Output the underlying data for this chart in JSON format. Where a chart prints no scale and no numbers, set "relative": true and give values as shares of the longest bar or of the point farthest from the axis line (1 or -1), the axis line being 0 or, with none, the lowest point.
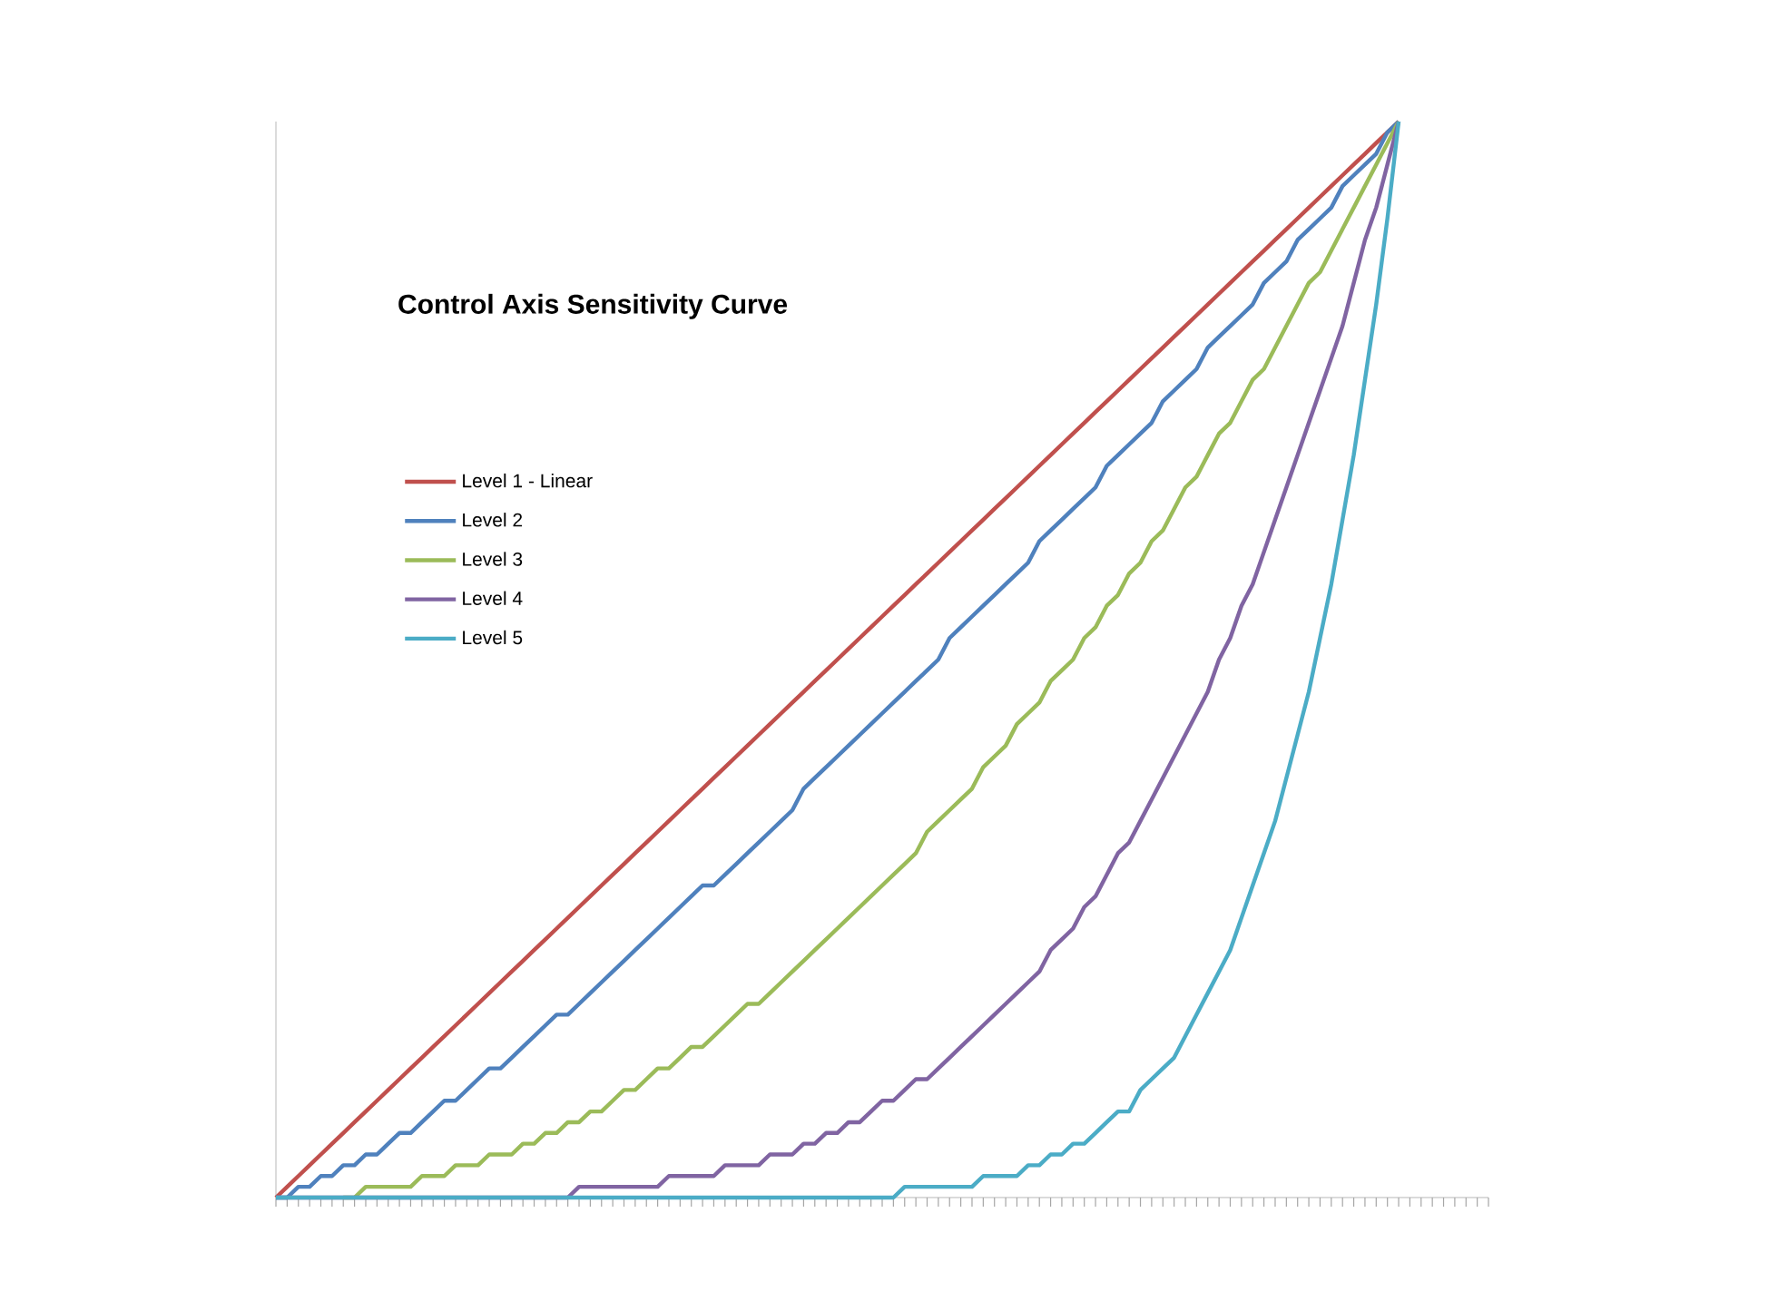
{
  "chart_data": {
    "type": "line",
    "title": "Control Axis Sensitivity Curve",
    "relative": true,
    "legend": "top left",
    "marker": "none",
    "line_style": "solid",
    "grid": false,
    "categories": [
      null,
      null,
      null,
      null,
      null,
      null,
      null,
      null,
      null,
      null,
      null,
      null,
      null,
      null,
      null,
      null,
      null,
      null,
      null,
      null,
      null,
      null,
      null,
      null,
      null,
      null,
      null,
      null,
      null,
      null,
      null,
      null,
      null,
      null,
      null,
      null,
      null,
      null,
      null,
      null,
      null,
      null,
      null,
      null,
      null,
      null,
      null,
      null,
      null,
      null,
      null,
      null,
      null,
      null,
      null,
      null,
      null,
      null,
      null,
      null,
      null,
      null,
      null,
      null,
      null,
      null,
      null,
      null,
      null,
      null,
      null,
      null,
      null,
      null,
      null,
      null,
      null,
      null,
      null,
      null,
      null,
      null,
      null,
      null,
      null,
      null,
      null,
      null,
      null,
      null,
      null,
      null,
      null,
      null,
      null,
      null,
      null,
      null,
      null,
      null,
      null,
      null,
      null,
      null,
      null,
      null,
      null,
      null,
      null
    ],
    "series": [
      {
        "name": "Level 1 - Linear",
        "color": "#c0504d",
        "values": [
          0,
          0.01,
          0.02,
          0.03,
          0.04,
          0.05,
          0.06,
          0.07,
          0.08,
          0.09,
          0.1,
          0.11,
          0.12,
          0.13,
          0.14,
          0.15,
          0.16,
          0.17,
          0.18,
          0.19,
          0.2,
          0.21,
          0.22,
          0.23,
          0.24,
          0.25,
          0.26,
          0.27,
          0.28,
          0.29,
          0.3,
          0.31,
          0.32,
          0.33,
          0.34,
          0.35,
          0.36,
          0.37,
          0.38,
          0.39,
          0.4,
          0.41,
          0.42,
          0.43,
          0.44,
          0.45,
          0.46,
          0.47,
          0.48,
          0.49,
          0.5,
          0.51,
          0.52,
          0.53,
          0.54,
          0.55,
          0.56,
          0.57,
          0.58,
          0.59,
          0.6,
          0.61,
          0.62,
          0.63,
          0.64,
          0.65,
          0.66,
          0.67,
          0.68,
          0.69,
          0.7,
          0.71,
          0.72,
          0.73,
          0.74,
          0.75,
          0.76,
          0.77,
          0.78,
          0.79,
          0.8,
          0.81,
          0.82,
          0.83,
          0.84,
          0.85,
          0.86,
          0.87,
          0.88,
          0.89,
          0.9,
          0.91,
          0.92,
          0.93,
          0.94,
          0.95,
          0.96,
          0.97,
          0.98,
          0.99,
          1,
          null,
          null,
          null,
          null,
          null,
          null,
          null,
          null
        ]
      },
      {
        "name": "Level 2",
        "color": "#4f81bd",
        "values": [
          0,
          0,
          0.01,
          0.01,
          0.02,
          0.02,
          0.03,
          0.03,
          0.04,
          0.04,
          0.05,
          0.06,
          0.06,
          0.07,
          0.08,
          0.09,
          0.09,
          0.1,
          0.11,
          0.12,
          0.12,
          0.13,
          0.14,
          0.15,
          0.16,
          0.17,
          0.17,
          0.18,
          0.19,
          0.2,
          0.21,
          0.22,
          0.23,
          0.24,
          0.25,
          0.26,
          0.27,
          0.28,
          0.29,
          0.29,
          0.3,
          0.31,
          0.32,
          0.33,
          0.34,
          0.35,
          0.36,
          0.38,
          0.39,
          0.4,
          0.41,
          0.42,
          0.43,
          0.44,
          0.45,
          0.46,
          0.47,
          0.48,
          0.49,
          0.5,
          0.52,
          0.53,
          0.54,
          0.55,
          0.56,
          0.57,
          0.58,
          0.59,
          0.61,
          0.62,
          0.63,
          0.64,
          0.65,
          0.66,
          0.68,
          0.69,
          0.7,
          0.71,
          0.72,
          0.74,
          0.75,
          0.76,
          0.77,
          0.79,
          0.8,
          0.81,
          0.82,
          0.83,
          0.85,
          0.86,
          0.87,
          0.89,
          0.9,
          0.91,
          0.92,
          0.94,
          0.95,
          0.96,
          0.97,
          0.99,
          1,
          null,
          null,
          null,
          null,
          null,
          null,
          null,
          null
        ]
      },
      {
        "name": "Level 3",
        "color": "#9bbb59",
        "values": [
          null,
          null,
          null,
          null,
          null,
          null,
          0,
          0,
          0.01,
          0.01,
          0.01,
          0.01,
          0.01,
          0.02,
          0.02,
          0.02,
          0.03,
          0.03,
          0.03,
          0.04,
          0.04,
          0.04,
          0.05,
          0.05,
          0.06,
          0.06,
          0.07,
          0.07,
          0.08,
          0.08,
          0.09,
          0.1,
          0.1,
          0.11,
          0.12,
          0.12,
          0.13,
          0.14,
          0.14,
          0.15,
          0.16,
          0.17,
          0.18,
          0.18,
          0.19,
          0.2,
          0.21,
          0.22,
          0.23,
          0.24,
          0.25,
          0.26,
          0.27,
          0.28,
          0.29,
          0.3,
          0.31,
          0.32,
          0.34,
          0.35,
          0.36,
          0.37,
          0.38,
          0.4,
          0.41,
          0.42,
          0.44,
          0.45,
          0.46,
          0.48,
          0.49,
          0.5,
          0.52,
          0.53,
          0.55,
          0.56,
          0.58,
          0.59,
          0.61,
          0.62,
          0.64,
          0.66,
          0.67,
          0.69,
          0.71,
          0.72,
          0.74,
          0.76,
          0.77,
          0.79,
          0.81,
          0.83,
          0.85,
          0.86,
          0.88,
          0.9,
          0.92,
          0.94,
          0.96,
          0.98,
          1,
          null,
          null,
          null,
          null,
          null,
          null,
          null,
          null
        ]
      },
      {
        "name": "Level 4",
        "color": "#8064a2",
        "values": [
          0,
          0,
          0,
          0,
          0,
          0,
          0,
          0,
          0,
          0,
          0,
          0,
          0,
          0,
          0,
          0,
          0,
          0,
          0,
          0,
          0,
          0,
          0,
          0,
          0,
          0,
          0,
          0.01,
          0.01,
          0.01,
          0.01,
          0.01,
          0.01,
          0.01,
          0.01,
          0.02,
          0.02,
          0.02,
          0.02,
          0.02,
          0.03,
          0.03,
          0.03,
          0.03,
          0.04,
          0.04,
          0.04,
          0.05,
          0.05,
          0.06,
          0.06,
          0.07,
          0.07,
          0.08,
          0.09,
          0.09,
          0.1,
          0.11,
          0.11,
          0.12,
          0.13,
          0.14,
          0.15,
          0.16,
          0.17,
          0.18,
          0.19,
          0.2,
          0.21,
          0.23,
          0.24,
          0.25,
          0.27,
          0.28,
          0.3,
          0.32,
          0.33,
          0.35,
          0.37,
          0.39,
          0.41,
          0.43,
          0.45,
          0.47,
          0.5,
          0.52,
          0.55,
          0.57,
          0.6,
          0.63,
          0.66,
          0.69,
          0.72,
          0.75,
          0.78,
          0.81,
          0.85,
          0.89,
          0.92,
          0.96,
          1,
          null,
          null,
          null,
          null,
          null,
          null,
          null,
          null
        ]
      },
      {
        "name": "Level 5",
        "color": "#4bacc6",
        "values": [
          0,
          0,
          0,
          0,
          0,
          0,
          0,
          0,
          0,
          0,
          0,
          0,
          0,
          0,
          0,
          0,
          0,
          0,
          0,
          0,
          0,
          0,
          0,
          0,
          0,
          0,
          0,
          0,
          0,
          0,
          0,
          0,
          0,
          0,
          0,
          0,
          0,
          0,
          0,
          0,
          0,
          0,
          0,
          0,
          0,
          0,
          0,
          0,
          0,
          0,
          0,
          0,
          0,
          0,
          0,
          0,
          0.01,
          0.01,
          0.01,
          0.01,
          0.01,
          0.01,
          0.01,
          0.02,
          0.02,
          0.02,
          0.02,
          0.03,
          0.03,
          0.04,
          0.04,
          0.05,
          0.05,
          0.06,
          0.07,
          0.08,
          0.08,
          0.1,
          0.11,
          0.12,
          0.13,
          0.15,
          0.17,
          0.19,
          0.21,
          0.23,
          0.26,
          0.29,
          0.32,
          0.35,
          0.39,
          0.43,
          0.47,
          0.52,
          0.57,
          0.63,
          0.69,
          0.76,
          0.83,
          0.91,
          1,
          null,
          null,
          null,
          null,
          null,
          null,
          null,
          null
        ]
      }
    ]
  }
}
